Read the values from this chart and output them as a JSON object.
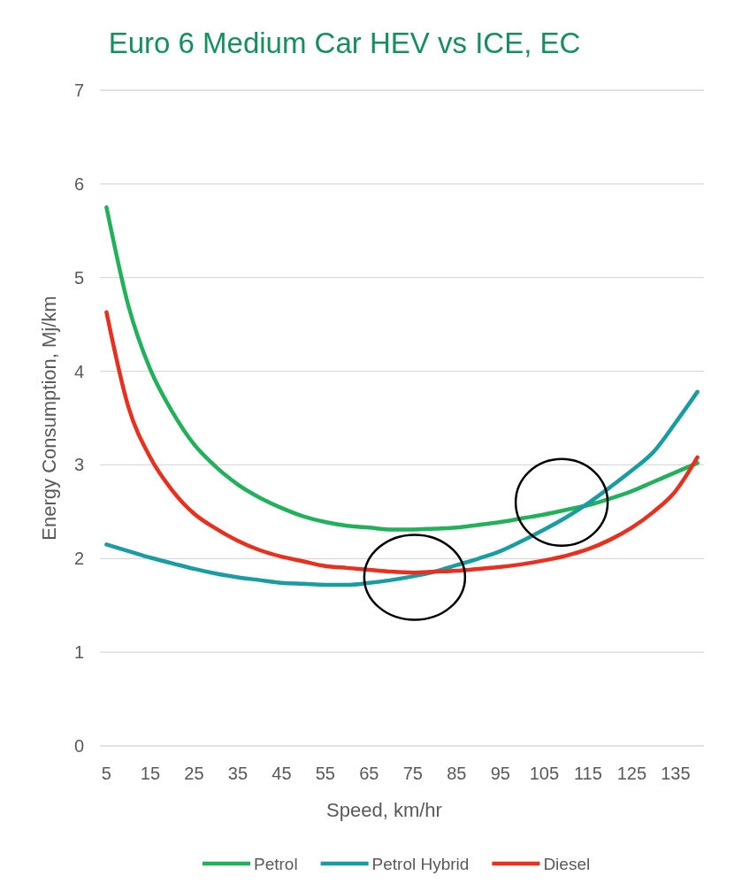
{
  "chart_data": {
    "type": "line",
    "title": "Euro 6 Medium Car HEV vs ICE, EC",
    "xlabel": "Speed, km/hr",
    "ylabel": "Energy Consumption, Mj/km",
    "categories": [
      "5",
      null,
      "15",
      null,
      "25",
      null,
      "35",
      null,
      "45",
      null,
      "55",
      null,
      "65",
      null,
      "75",
      null,
      "85",
      null,
      "95",
      null,
      "105",
      null,
      "115",
      null,
      "125",
      null,
      "135",
      null
    ],
    "ylim": [
      0,
      7
    ],
    "yticks": [
      0,
      1,
      2,
      3,
      4,
      5,
      6,
      7
    ],
    "grid": "y",
    "legend": "bottom",
    "marker": "none",
    "line_style": "solid",
    "series": [
      {
        "name": "Petrol",
        "color": "#22b05a",
        "values": [
          5.75,
          4.7,
          4.02,
          3.57,
          3.22,
          2.98,
          2.79,
          2.65,
          2.54,
          2.45,
          2.39,
          2.35,
          2.33,
          2.31,
          2.31,
          2.32,
          2.33,
          2.36,
          2.39,
          2.43,
          2.47,
          2.52,
          2.57,
          2.64,
          2.72,
          2.82,
          2.92,
          3.02
        ]
      },
      {
        "name": "Petrol Hybrid",
        "color": "#1a9ca3",
        "values": [
          2.15,
          2.08,
          2.01,
          1.95,
          1.89,
          1.84,
          1.8,
          1.77,
          1.74,
          1.73,
          1.72,
          1.72,
          1.74,
          1.77,
          1.81,
          1.86,
          1.93,
          2.0,
          2.08,
          2.19,
          2.31,
          2.44,
          2.59,
          2.76,
          2.94,
          3.14,
          3.45,
          3.78
        ]
      },
      {
        "name": "Diesel",
        "color": "#e8301e",
        "values": [
          4.63,
          3.62,
          3.08,
          2.73,
          2.48,
          2.32,
          2.19,
          2.09,
          2.02,
          1.97,
          1.92,
          1.9,
          1.88,
          1.86,
          1.85,
          1.86,
          1.87,
          1.89,
          1.91,
          1.94,
          1.98,
          2.03,
          2.1,
          2.2,
          2.33,
          2.5,
          2.72,
          3.08
        ]
      }
    ]
  }
}
